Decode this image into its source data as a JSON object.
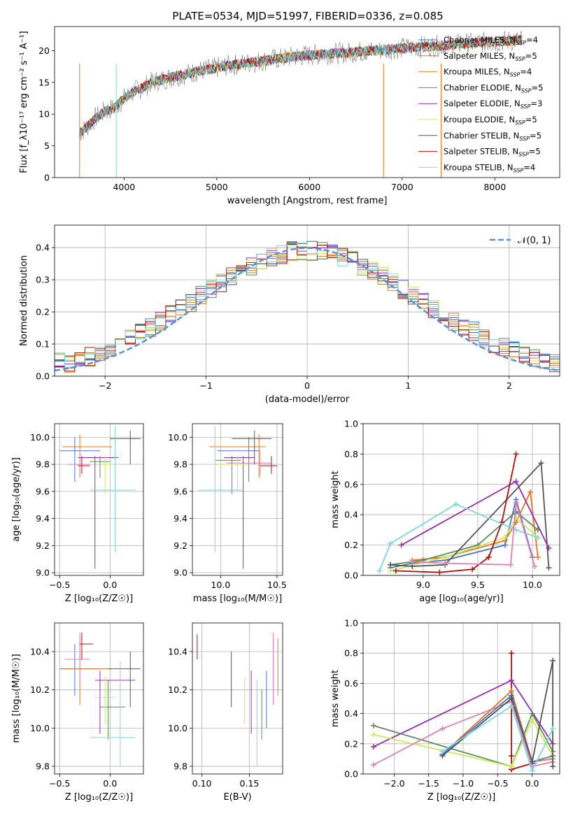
{
  "title": "PLATE=0534, MJD=51997, FIBERID=0336, z=0.085",
  "colors": {
    "chabrier_miles": "#4a72d4",
    "salpeter_miles": "#e8761b",
    "kroupa_miles": "#c8892a",
    "chabrier_elodie": "#5b8c5a",
    "salpeter_elodie": "#9a2ab5",
    "kroupa_elodie": "#cfe85a",
    "chabrier_stelib": "#555555",
    "salpeter_stelib": "#b01010",
    "kroupa_stelib": "#7ed6e0",
    "pink": "#e07fb5",
    "gaussian": "#5b8fd6"
  },
  "chart_data": [
    {
      "id": "spectrum",
      "type": "line",
      "xlabel": "wavelength [Angstrom, rest frame]",
      "ylabel": "Flux [f_λ10⁻¹⁷ erg cm⁻² s⁻¹ A⁻¹]",
      "xlim": [
        3250,
        8700
      ],
      "ylim": [
        0,
        23.8
      ],
      "xticks": [
        "4000",
        "5000",
        "6000",
        "7000",
        "8000"
      ],
      "yticks": [
        "0",
        "5",
        "10",
        "15",
        "20"
      ],
      "x": [
        3520,
        3600,
        3700,
        3800,
        3900,
        4000,
        4100,
        4200,
        4300,
        4400,
        4500,
        4600,
        4700,
        4800,
        4900,
        5000,
        5100,
        5200,
        5300,
        5400,
        5500,
        5600,
        5700,
        5800,
        5900,
        6000,
        6100,
        6200,
        6300,
        6400,
        6500,
        6600,
        6700,
        6800,
        6900,
        7000,
        7100,
        7200,
        7300,
        7400,
        7500,
        7600,
        7700,
        7800,
        7900,
        8000,
        8100,
        8200,
        8300
      ],
      "y": [
        7.0,
        8.0,
        9.5,
        10.5,
        11.0,
        12.5,
        13.5,
        14.2,
        15.0,
        15.4,
        15.8,
        16.1,
        16.4,
        16.8,
        17.0,
        17.3,
        17.6,
        17.8,
        18.0,
        18.2,
        18.4,
        18.6,
        18.8,
        19.0,
        19.2,
        19.3,
        19.4,
        19.5,
        19.6,
        19.7,
        19.8,
        19.9,
        20.0,
        20.1,
        20.3,
        20.4,
        20.5,
        20.6,
        20.7,
        20.8,
        20.9,
        21.0,
        21.1,
        21.2,
        21.3,
        21.4,
        21.5,
        21.6,
        21.7
      ],
      "legend": [
        "Chabrier MILES, N_SSP=4",
        "Salpeter MILES, N_SSP=5",
        "Kroupa MILES, N_SSP=4",
        "Chabrier ELODIE, N_SSP=5",
        "Salpeter ELODIE, N_SSP=3",
        "Kroupa ELODIE, N_SSP=5",
        "Chabrier STELIB, N_SSP=5",
        "Salpeter STELIB, N_SSP=5",
        "Kroupa STELIB, N_SSP=4"
      ],
      "legend_position": "right"
    },
    {
      "id": "residuals",
      "type": "line",
      "xlabel": "(data-model)/error",
      "ylabel": "Normed distribution",
      "xlim": [
        -2.5,
        2.5
      ],
      "ylim": [
        0,
        0.47
      ],
      "xticks": [
        "−2",
        "−1",
        "0",
        "1",
        "2"
      ],
      "yticks": [
        "0.0",
        "0.1",
        "0.2",
        "0.3",
        "0.4"
      ],
      "bin_edges": [
        -2.5,
        -2.4,
        -2.3,
        -2.2,
        -2.1,
        -2.0,
        -1.9,
        -1.8,
        -1.7,
        -1.6,
        -1.5,
        -1.4,
        -1.3,
        -1.2,
        -1.1,
        -1.0,
        -0.9,
        -0.8,
        -0.7,
        -0.6,
        -0.5,
        -0.4,
        -0.3,
        -0.2,
        -0.1,
        0.0,
        0.1,
        0.2,
        0.3,
        0.4,
        0.5,
        0.6,
        0.7,
        0.8,
        0.9,
        1.0,
        1.1,
        1.2,
        1.3,
        1.4,
        1.5,
        1.6,
        1.7,
        1.8,
        1.9,
        2.0,
        2.1,
        2.2,
        2.3,
        2.4,
        2.5
      ],
      "histogram_counts": [
        0.05,
        0.04,
        0.05,
        0.06,
        0.07,
        0.09,
        0.1,
        0.12,
        0.14,
        0.15,
        0.17,
        0.19,
        0.21,
        0.23,
        0.25,
        0.27,
        0.29,
        0.31,
        0.33,
        0.34,
        0.36,
        0.37,
        0.38,
        0.39,
        0.39,
        0.39,
        0.39,
        0.38,
        0.37,
        0.36,
        0.34,
        0.33,
        0.31,
        0.29,
        0.27,
        0.25,
        0.23,
        0.21,
        0.19,
        0.17,
        0.15,
        0.14,
        0.12,
        0.1,
        0.09,
        0.08,
        0.07,
        0.06,
        0.05,
        0.04
      ],
      "legend": [
        "𝒩(0, 1)"
      ],
      "legend_position": "top-right"
    },
    {
      "id": "age_vs_Z",
      "type": "scatter",
      "xlabel": "Z [log₁₀(Z/Z☉)]",
      "ylabel": "age  [log₁₀(age/yr)]",
      "xlim": [
        -0.55,
        0.33
      ],
      "ylim": [
        8.98,
        10.1
      ],
      "xticks": [
        "−0.5",
        "0.0"
      ],
      "yticks": [
        "9.0",
        "9.2",
        "9.4",
        "9.6",
        "9.8",
        "10.0"
      ],
      "points": [
        {
          "x": -0.35,
          "y": 9.9,
          "xe": [
            -0.5,
            -0.1
          ],
          "ye": [
            9.67,
            10.0
          ],
          "c": "chabrier_miles"
        },
        {
          "x": -0.3,
          "y": 9.93,
          "xe": [
            -0.47,
            0.02
          ],
          "ye": [
            9.7,
            10.02
          ],
          "c": "salpeter_miles"
        },
        {
          "x": -0.3,
          "y": 9.8,
          "xe": [
            -0.42,
            -0.2
          ],
          "ye": [
            9.72,
            9.9
          ],
          "c": "pink"
        },
        {
          "x": -0.1,
          "y": 9.82,
          "xe": [
            -0.2,
            0.0
          ],
          "ye": [
            9.7,
            9.86
          ],
          "c": "chabrier_elodie"
        },
        {
          "x": -0.15,
          "y": 9.85,
          "xe": [
            -0.32,
            0.08
          ],
          "ye": [
            9.03,
            9.86
          ],
          "c": "salpeter_elodie"
        },
        {
          "x": -0.05,
          "y": 9.8,
          "xe": [
            -0.1,
            0.05
          ],
          "ye": [
            9.58,
            9.86
          ],
          "c": "kroupa_elodie"
        },
        {
          "x": 0.2,
          "y": 9.99,
          "xe": [
            0.0,
            0.3
          ],
          "ye": [
            9.8,
            10.05
          ],
          "c": "chabrier_stelib"
        },
        {
          "x": -0.28,
          "y": 9.79,
          "xe": [
            -0.32,
            -0.2
          ],
          "ye": [
            9.73,
            9.86
          ],
          "c": "salpeter_stelib"
        },
        {
          "x": 0.05,
          "y": 9.61,
          "xe": [
            -0.2,
            0.25
          ],
          "ye": [
            9.15,
            10.08
          ],
          "c": "kroupa_stelib"
        }
      ]
    },
    {
      "id": "age_vs_mass",
      "type": "scatter",
      "xlabel": "mass [log₁₀(M/M☉)]",
      "ylabel": "",
      "xlim": [
        9.75,
        10.55
      ],
      "ylim": [
        8.98,
        10.1
      ],
      "xticks": [
        "10.0",
        "10.5"
      ],
      "yticks": [
        "9.0",
        "9.2",
        "9.4",
        "9.6",
        "9.8",
        "10.0"
      ],
      "points": [
        {
          "x": 10.25,
          "y": 9.9,
          "xe": [
            9.97,
            10.35
          ],
          "ye": [
            9.67,
            10.0
          ],
          "c": "chabrier_miles"
        },
        {
          "x": 10.34,
          "y": 9.93,
          "xe": [
            9.9,
            10.4
          ],
          "ye": [
            9.7,
            10.02
          ],
          "c": "salpeter_miles"
        },
        {
          "x": 10.35,
          "y": 9.81,
          "xe": [
            10.05,
            10.45
          ],
          "ye": [
            9.72,
            9.9
          ],
          "c": "pink"
        },
        {
          "x": 10.1,
          "y": 9.83,
          "xe": [
            9.95,
            10.18
          ],
          "ye": [
            9.58,
            9.86
          ],
          "c": "chabrier_elodie"
        },
        {
          "x": 10.2,
          "y": 9.85,
          "xe": [
            10.03,
            10.3
          ],
          "ye": [
            9.03,
            9.86
          ],
          "c": "salpeter_elodie"
        },
        {
          "x": 10.15,
          "y": 9.8,
          "xe": [
            9.98,
            10.25
          ],
          "ye": [
            9.6,
            9.86
          ],
          "c": "kroupa_elodie"
        },
        {
          "x": 10.3,
          "y": 9.99,
          "xe": [
            10.1,
            10.45
          ],
          "ye": [
            9.8,
            10.05
          ],
          "c": "chabrier_stelib"
        },
        {
          "x": 10.45,
          "y": 9.79,
          "xe": [
            10.35,
            10.5
          ],
          "ye": [
            9.73,
            9.86
          ],
          "c": "salpeter_stelib"
        },
        {
          "x": 9.95,
          "y": 9.61,
          "xe": [
            9.8,
            10.2
          ],
          "ye": [
            9.15,
            10.08
          ],
          "c": "kroupa_stelib"
        }
      ]
    },
    {
      "id": "weight_vs_age",
      "type": "line",
      "xlabel": "age  [log₁₀(age/yr)]",
      "ylabel": "mass weight",
      "xlim": [
        8.45,
        10.25
      ],
      "ylim": [
        0,
        1.0
      ],
      "xticks": [
        "9.0",
        "9.5",
        "10.0"
      ],
      "yticks": [
        "0.0",
        "0.2",
        "0.4",
        "0.6",
        "0.8",
        "1.0"
      ],
      "series": [
        {
          "c": "chabrier_miles",
          "x": [
            8.7,
            8.9,
            9.2,
            9.75,
            9.85,
            10.0
          ],
          "y": [
            0.05,
            0.08,
            0.1,
            0.2,
            0.5,
            0.12
          ]
        },
        {
          "c": "salpeter_miles",
          "x": [
            8.9,
            9.2,
            9.75,
            9.85,
            9.98,
            10.05
          ],
          "y": [
            0.1,
            0.12,
            0.23,
            0.35,
            0.55,
            0.12
          ]
        },
        {
          "c": "chabrier_elodie",
          "x": [
            8.7,
            9.0,
            9.5,
            9.85,
            10.05
          ],
          "y": [
            0.07,
            0.1,
            0.2,
            0.42,
            0.3
          ]
        },
        {
          "c": "salpeter_elodie",
          "x": [
            8.8,
            9.85,
            10.15
          ],
          "y": [
            0.2,
            0.62,
            0.18
          ]
        },
        {
          "c": "kroupa_elodie",
          "x": [
            8.7,
            9.2,
            9.75,
            9.85,
            10.05
          ],
          "y": [
            0.03,
            0.12,
            0.25,
            0.38,
            0.25
          ]
        },
        {
          "c": "chabrier_stelib",
          "x": [
            8.7,
            8.9,
            9.2,
            10.08,
            10.15
          ],
          "y": [
            0.07,
            0.06,
            0.07,
            0.74,
            0.05
          ]
        },
        {
          "c": "salpeter_stelib",
          "x": [
            8.75,
            9.15,
            9.45,
            9.6,
            9.72,
            9.85
          ],
          "y": [
            0.03,
            0.02,
            0.04,
            0.12,
            0.35,
            0.8
          ]
        },
        {
          "c": "kroupa_stelib",
          "x": [
            8.6,
            8.7,
            9.3,
            9.85,
            10.05
          ],
          "y": [
            0.03,
            0.21,
            0.47,
            0.3,
            0.25
          ]
        },
        {
          "c": "pink",
          "x": [
            8.9,
            9.2,
            9.8,
            9.85,
            10.02
          ],
          "y": [
            0.09,
            0.08,
            0.07,
            0.48,
            0.06
          ]
        }
      ]
    },
    {
      "id": "mass_vs_Z",
      "type": "scatter",
      "xlabel": "Z [log₁₀(Z/Z☉)]",
      "ylabel": "mass [log₁₀(M/M☉)]",
      "xlim": [
        -0.55,
        0.33
      ],
      "ylim": [
        9.76,
        10.55
      ],
      "xticks": [
        "−0.5",
        "0.0"
      ],
      "yticks": [
        "9.8",
        "10.0",
        "10.2",
        "10.4"
      ],
      "points": [
        {
          "x": -0.35,
          "y": 10.31,
          "xe": [
            -0.5,
            -0.1
          ],
          "ye": [
            10.17,
            10.44
          ],
          "c": "chabrier_miles"
        },
        {
          "x": -0.3,
          "y": 10.31,
          "xe": [
            -0.47,
            0.02
          ],
          "ye": [
            10.12,
            10.46
          ],
          "c": "salpeter_miles"
        },
        {
          "x": -0.3,
          "y": 10.36,
          "xe": [
            -0.45,
            -0.2
          ],
          "ye": [
            10.23,
            10.5
          ],
          "c": "pink"
        },
        {
          "x": -0.02,
          "y": 10.11,
          "xe": [
            -0.1,
            0.15
          ],
          "ye": [
            9.94,
            10.25
          ],
          "c": "chabrier_elodie"
        },
        {
          "x": -0.1,
          "y": 10.25,
          "xe": [
            -0.15,
            0.25
          ],
          "ye": [
            9.97,
            10.3
          ],
          "c": "salpeter_elodie"
        },
        {
          "x": -0.05,
          "y": 10.16,
          "xe": [
            -0.15,
            0.05
          ],
          "ye": [
            10.02,
            10.27
          ],
          "c": "kroupa_elodie"
        },
        {
          "x": 0.2,
          "y": 10.31,
          "xe": [
            -0.02,
            0.3
          ],
          "ye": [
            10.11,
            10.4
          ],
          "c": "chabrier_stelib"
        },
        {
          "x": -0.28,
          "y": 10.44,
          "xe": [
            -0.3,
            -0.17
          ],
          "ye": [
            10.36,
            10.5
          ],
          "c": "salpeter_stelib"
        },
        {
          "x": 0.1,
          "y": 9.95,
          "xe": [
            -0.2,
            0.25
          ],
          "ye": [
            9.8,
            10.35
          ],
          "c": "kroupa_stelib"
        }
      ]
    },
    {
      "id": "mass_vs_EBV",
      "type": "scatter",
      "xlabel": "E(B-V)",
      "ylabel": "",
      "xlim": [
        0.09,
        0.185
      ],
      "ylim": [
        9.76,
        10.55
      ],
      "xticks": [
        "0.10",
        "0.15"
      ],
      "yticks": [
        "9.8",
        "10.0",
        "10.2",
        "10.4"
      ],
      "points": [
        {
          "x": 0.095,
          "ye": [
            10.36,
            10.49
          ],
          "c": "salpeter_stelib"
        },
        {
          "x": 0.131,
          "ye": [
            10.11,
            10.4
          ],
          "c": "chabrier_stelib"
        },
        {
          "x": 0.145,
          "ye": [
            10.02,
            10.26
          ],
          "c": "kroupa_elodie"
        },
        {
          "x": 0.152,
          "ye": [
            9.97,
            10.3
          ],
          "c": "salpeter_elodie"
        },
        {
          "x": 0.158,
          "ye": [
            9.8,
            10.25
          ],
          "c": "kroupa_stelib"
        },
        {
          "x": 0.163,
          "ye": [
            9.94,
            10.2
          ],
          "c": "chabrier_elodie"
        },
        {
          "x": 0.168,
          "ye": [
            10.0,
            10.3
          ],
          "c": "chabrier_miles"
        },
        {
          "x": 0.175,
          "ye": [
            10.12,
            10.5
          ],
          "c": "pink"
        },
        {
          "x": 0.18,
          "ye": [
            10.17,
            10.47
          ],
          "c": "salpeter_miles"
        }
      ]
    },
    {
      "id": "weight_vs_Z",
      "type": "line",
      "xlabel": "Z [log₁₀(Z/Z☉)]",
      "ylabel": "mass weight",
      "xlim": [
        -2.45,
        0.4
      ],
      "ylim": [
        0,
        1.0
      ],
      "xticks": [
        "−2.0",
        "−1.5",
        "−1.0",
        "−0.5",
        "0.0"
      ],
      "yticks": [
        "0.0",
        "0.2",
        "0.4",
        "0.6",
        "0.8",
        "1.0"
      ],
      "series": [
        {
          "c": "salpeter_stelib",
          "x": [
            -0.3,
            -0.3,
            -0.3,
            -0.3,
            0.0
          ],
          "y": [
            0.8,
            0.12,
            0.03,
            0.03,
            0.07
          ]
        },
        {
          "c": "salpeter_elodie",
          "x": [
            -2.3,
            -0.3,
            0.3
          ],
          "y": [
            0.18,
            0.62,
            0.2
          ]
        },
        {
          "c": "chabrier_elodie",
          "x": [
            -2.3,
            -0.3,
            0.0,
            0.3
          ],
          "y": [
            0.32,
            0.05,
            0.4,
            0.15
          ]
        },
        {
          "c": "kroupa_elodie",
          "x": [
            -2.3,
            -0.3,
            0.0,
            0.3
          ],
          "y": [
            0.26,
            0.05,
            0.36,
            0.12
          ]
        },
        {
          "c": "pink",
          "x": [
            -2.3,
            -1.3,
            -0.3,
            0.0,
            0.3
          ],
          "y": [
            0.06,
            0.3,
            0.48,
            0.05,
            0.08
          ]
        },
        {
          "c": "salpeter_miles",
          "x": [
            -1.3,
            -0.3,
            0.0,
            0.3
          ],
          "y": [
            0.13,
            0.55,
            0.08,
            0.1
          ]
        },
        {
          "c": "chabrier_miles",
          "x": [
            -1.3,
            -0.3,
            0.0,
            0.3
          ],
          "y": [
            0.13,
            0.52,
            0.08,
            0.12
          ]
        },
        {
          "c": "chabrier_stelib",
          "x": [
            -1.3,
            -0.3,
            0.0,
            0.3,
            0.3
          ],
          "y": [
            0.12,
            0.5,
            0.08,
            0.75,
            0.05
          ]
        },
        {
          "c": "kroupa_stelib",
          "x": [
            -1.3,
            -0.3,
            0.0,
            0.3
          ],
          "y": [
            0.15,
            0.45,
            0.02,
            0.3
          ]
        }
      ]
    }
  ]
}
